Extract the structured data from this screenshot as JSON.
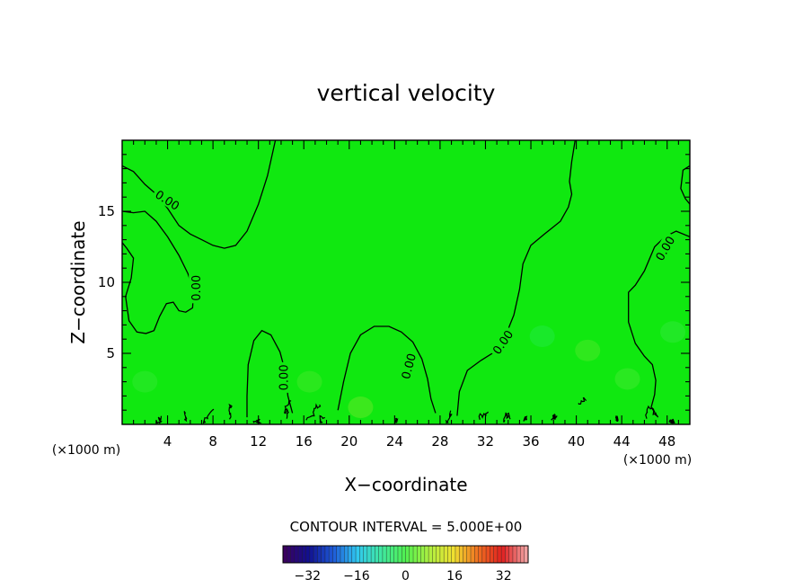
{
  "chart_data": {
    "type": "heatmap",
    "title": "vertical velocity",
    "xlabel": "X−coordinate",
    "ylabel": "Z−coordinate",
    "x_units_label": "(×1000 m)",
    "x_units_label_right": "(×1000 m)",
    "xlim": [
      0,
      50
    ],
    "ylim": [
      0,
      20
    ],
    "x_ticks": [
      4,
      8,
      12,
      16,
      20,
      24,
      28,
      32,
      36,
      40,
      44,
      48
    ],
    "y_ticks": [
      5,
      10,
      15
    ],
    "field_color": "#10e810",
    "contour_interval_text": "CONTOUR INTERVAL = 5.000E+00",
    "contour_labels": [
      "0.00",
      "0.00",
      "0.00",
      "0.00",
      "0.00",
      "0.00"
    ],
    "colorbar": {
      "range": [
        -40,
        40
      ],
      "ticks": [
        -32,
        -16,
        0,
        16,
        32
      ],
      "colors": [
        "#3b0060",
        "#101090",
        "#1e5ad8",
        "#30c8f0",
        "#40e8a0",
        "#50f050",
        "#b0f040",
        "#f0e030",
        "#f07020",
        "#e02020",
        "#f0a0a0"
      ]
    },
    "zero_contours": [
      [
        [
          0,
          18.2
        ],
        [
          1,
          17.8
        ],
        [
          2,
          16.9
        ],
        [
          3,
          16.2
        ],
        [
          4,
          15.2
        ],
        [
          5,
          14.0
        ],
        [
          6,
          13.4
        ],
        [
          7,
          13.0
        ],
        [
          8,
          12.6
        ],
        [
          9,
          12.4
        ],
        [
          10,
          12.6
        ],
        [
          11,
          13.6
        ],
        [
          12,
          15.5
        ],
        [
          12.8,
          17.5
        ],
        [
          13.5,
          20
        ]
      ],
      [
        [
          0,
          15.0
        ],
        [
          1,
          14.9
        ],
        [
          2,
          15.0
        ],
        [
          3,
          14.3
        ],
        [
          4,
          13.2
        ],
        [
          5,
          11.9
        ],
        [
          5.8,
          10.6
        ],
        [
          6.3,
          9.4
        ],
        [
          6.2,
          8.2
        ],
        [
          5.6,
          7.9
        ],
        [
          5.0,
          8.0
        ],
        [
          4.5,
          8.6
        ],
        [
          3.9,
          8.5
        ],
        [
          3.3,
          7.6
        ],
        [
          2.8,
          6.6
        ],
        [
          2.1,
          6.4
        ],
        [
          1.3,
          6.5
        ],
        [
          0.6,
          7.3
        ],
        [
          0.3,
          9.0
        ],
        [
          0.8,
          10.3
        ],
        [
          1.0,
          11.7
        ],
        [
          0.4,
          12.4
        ],
        [
          0,
          12.8
        ]
      ],
      [
        [
          11,
          0.5
        ],
        [
          11,
          2
        ],
        [
          11.1,
          4.2
        ],
        [
          11.6,
          5.9
        ],
        [
          12.3,
          6.6
        ],
        [
          13.1,
          6.3
        ],
        [
          13.9,
          5.1
        ],
        [
          14.4,
          3.6
        ],
        [
          14.6,
          2.0
        ],
        [
          15,
          0.8
        ]
      ],
      [
        [
          19,
          1
        ],
        [
          19.5,
          3.0
        ],
        [
          20.1,
          5.0
        ],
        [
          21.0,
          6.3
        ],
        [
          22.2,
          6.9
        ],
        [
          23.5,
          6.9
        ],
        [
          24.6,
          6.5
        ],
        [
          25.6,
          5.8
        ],
        [
          26.4,
          4.6
        ],
        [
          26.9,
          3.2
        ],
        [
          27.2,
          1.8
        ],
        [
          27.6,
          0.8
        ]
      ],
      [
        [
          29.5,
          0.6
        ],
        [
          29.7,
          2.3
        ],
        [
          30.4,
          3.8
        ],
        [
          31.6,
          4.5
        ],
        [
          32.8,
          5.1
        ],
        [
          33.8,
          6.3
        ],
        [
          34.5,
          7.7
        ],
        [
          35.0,
          9.5
        ],
        [
          35.3,
          11.3
        ],
        [
          36.0,
          12.6
        ],
        [
          37.2,
          13.4
        ],
        [
          38.6,
          14.3
        ],
        [
          39.3,
          15.3
        ],
        [
          39.6,
          16.2
        ],
        [
          39.4,
          17.1
        ],
        [
          39.6,
          18.5
        ],
        [
          39.9,
          20
        ]
      ],
      [
        [
          50,
          13.2
        ],
        [
          48.8,
          13.6
        ],
        [
          47.8,
          13.2
        ],
        [
          46.9,
          12.5
        ],
        [
          46.0,
          10.8
        ],
        [
          45.2,
          9.8
        ],
        [
          44.6,
          9.3
        ],
        [
          44.6,
          7.2
        ],
        [
          45.2,
          5.7
        ],
        [
          46.0,
          4.8
        ],
        [
          46.7,
          4.2
        ],
        [
          47.0,
          3.1
        ],
        [
          46.9,
          2.1
        ],
        [
          46.6,
          1.2
        ],
        [
          47.2,
          0.5
        ]
      ],
      [
        [
          50,
          18.2
        ],
        [
          49.4,
          17.9
        ],
        [
          49.2,
          16.6
        ],
        [
          49.6,
          15.9
        ],
        [
          50,
          15.5
        ]
      ]
    ]
  }
}
